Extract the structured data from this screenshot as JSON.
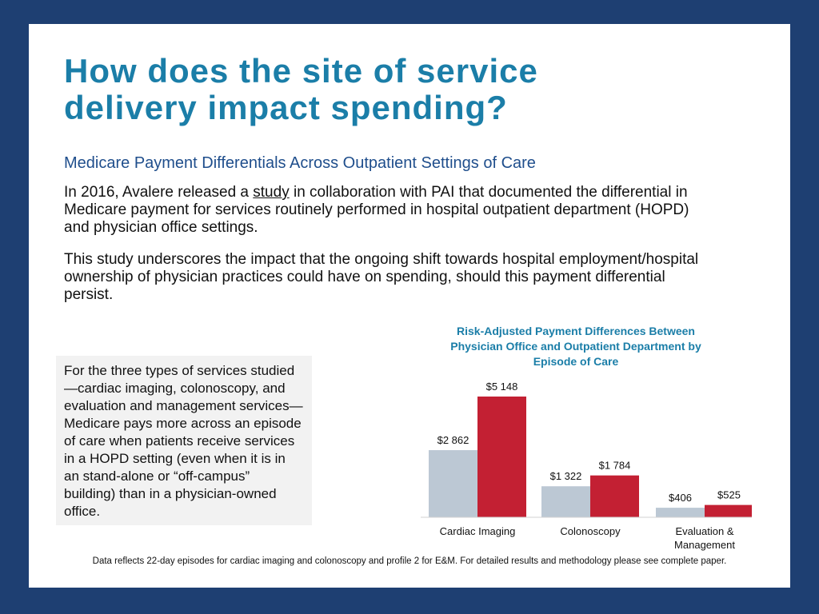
{
  "slide": {
    "title": "How does the site of service delivery impact spending?",
    "subtitle": "Medicare Payment Differentials Across Outpatient Settings of Care",
    "paragraph1": [
      "In 2016, Avalere released a ",
      "study",
      " in collaboration with PAI that documented the differential in Medicare payment for services routinely performed in hospital outpatient department (HOPD) and physician office settings."
    ],
    "paragraph2": "This study underscores the impact that the ongoing shift towards hospital employment/hospital ownership of physician practices could have on spending, should this payment differential persist.",
    "callout": "For the three types of services studied—cardiac imaging, colonoscopy, and evaluation and management services—Medicare pays more across an episode of care when patients receive services in a HOPD setting (even when it is in an stand-alone or “off-campus” building) than in a physician-owned office.",
    "footnote": "Data reflects 22-day episodes for cardiac imaging and colonoscopy and profile 2 for E&M. For detailed results and methodology please see complete paper."
  },
  "chart_data": {
    "type": "bar",
    "title": "Risk-Adjusted Payment Differences Between Physician Office and Outpatient Department by Episode of Care",
    "categories": [
      "Cardiac Imaging",
      "Colonoscopy",
      "Evaluation & Management"
    ],
    "series": [
      {
        "name": "Physician Office",
        "color": "#bcc8d4",
        "values": [
          2862,
          1322,
          406
        ],
        "value_labels": [
          "$2 862",
          "$1 322",
          "$406"
        ]
      },
      {
        "color": "#c32033",
        "values": [
          5148,
          1784,
          525
        ],
        "value_labels": [
          "$5 148",
          "$1 784",
          "$525"
        ]
      }
    ]
  }
}
